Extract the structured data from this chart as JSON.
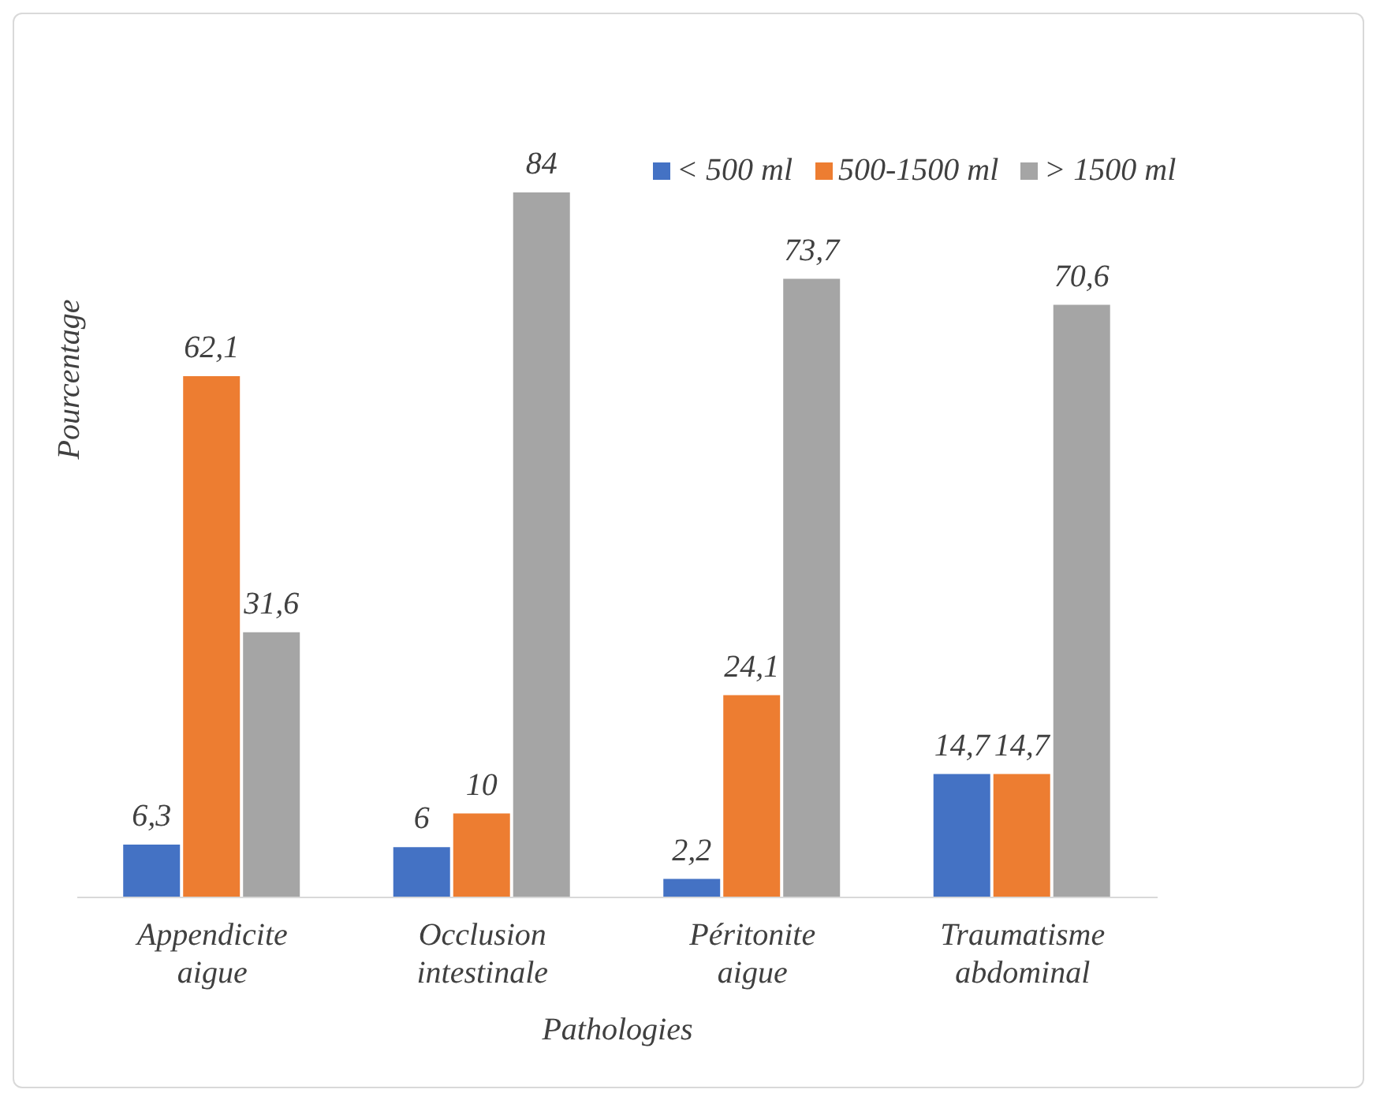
{
  "chart_data": {
    "type": "bar",
    "xlabel": "Pathologies",
    "ylabel": "Pourcentage",
    "categories": [
      "Appendicite aigue",
      "Occlusion intestinale",
      "Péritonite aigue",
      "Traumatisme abdominal"
    ],
    "series": [
      {
        "name": "< 500 ml",
        "color": "#4472c4",
        "values": [
          6.3,
          6,
          2.2,
          14.7
        ],
        "value_labels": [
          "6,3",
          "6",
          "2,2",
          "14,7"
        ]
      },
      {
        "name": "500-1500 ml",
        "color": "#ed7d31",
        "values": [
          62.1,
          10,
          24.1,
          14.7
        ],
        "value_labels": [
          "62,1",
          "10",
          "24,1",
          "14,7"
        ]
      },
      {
        "name": "> 1500 ml",
        "color": "#a5a5a5",
        "values": [
          31.6,
          84,
          73.7,
          70.6
        ],
        "value_labels": [
          "31,6",
          "84",
          "73,7",
          "70,6"
        ]
      }
    ],
    "legend": "top right"
  }
}
